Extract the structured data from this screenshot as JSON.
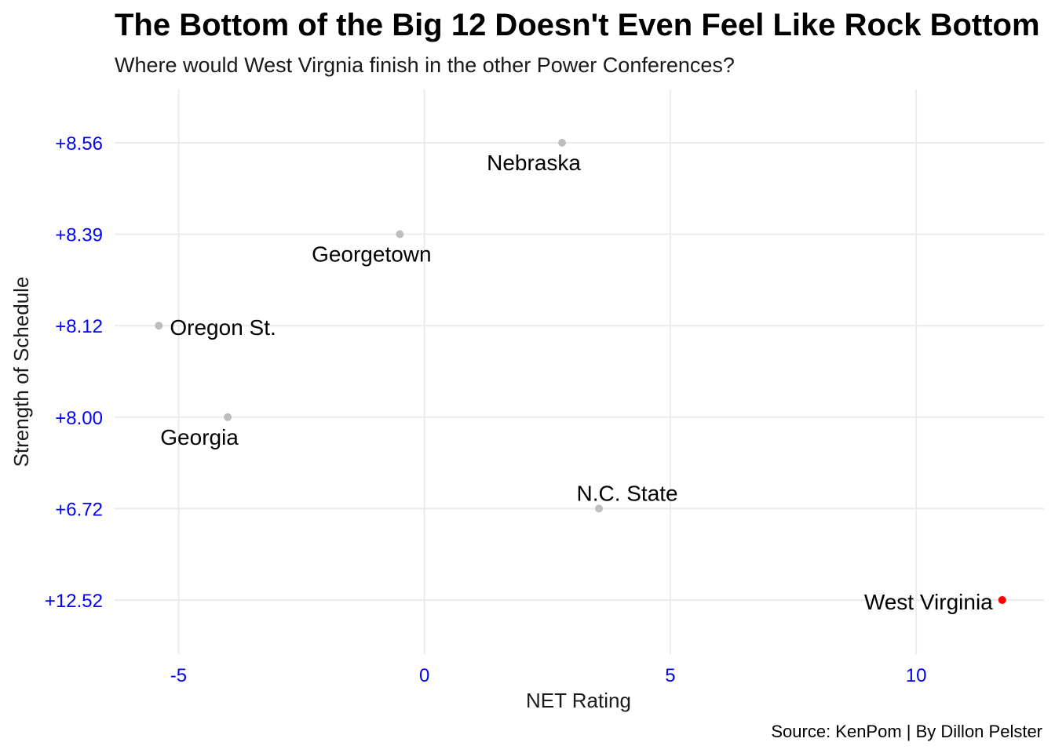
{
  "chart_data": {
    "type": "scatter",
    "title": "The Bottom of the Big 12 Doesn't Even Feel Like Rock Bottom",
    "subtitle": "Where would West Virgnia finish in the other Power Conferences?",
    "caption": "Source: KenPom | By Dillon Pelster",
    "xlabel": "NET Rating",
    "ylabel": "Strength of Schedule",
    "y_axis_type": "categorical",
    "y_categories": [
      "+12.52",
      "+6.72",
      "+8.00",
      "+8.12",
      "+8.39",
      "+8.56"
    ],
    "xlim": [
      -6.3,
      12.6
    ],
    "x_ticks": [
      -5,
      0,
      5,
      10
    ],
    "x_tick_labels": [
      "-5",
      "0",
      "5",
      "10"
    ],
    "grid": true,
    "legend": "none",
    "tick_color": "#0000ff",
    "points": [
      {
        "label": "Nebraska",
        "x": 2.8,
        "y": "+8.56",
        "color": "#bebebe",
        "label_side": "below"
      },
      {
        "label": "Georgetown",
        "x": -0.5,
        "y": "+8.39",
        "color": "#bebebe",
        "label_side": "below"
      },
      {
        "label": "Oregon St.",
        "x": -5.4,
        "y": "+8.12",
        "color": "#bebebe",
        "label_side": "right"
      },
      {
        "label": "Georgia",
        "x": -4.0,
        "y": "+8.00",
        "color": "#bebebe",
        "label_side": "below"
      },
      {
        "label": "N.C. State",
        "x": 3.55,
        "y": "+6.72",
        "color": "#bebebe",
        "label_side": "above"
      },
      {
        "label": "West Virginia",
        "x": 11.75,
        "y": "+12.52",
        "color": "#ff0000",
        "label_side": "left"
      }
    ]
  }
}
